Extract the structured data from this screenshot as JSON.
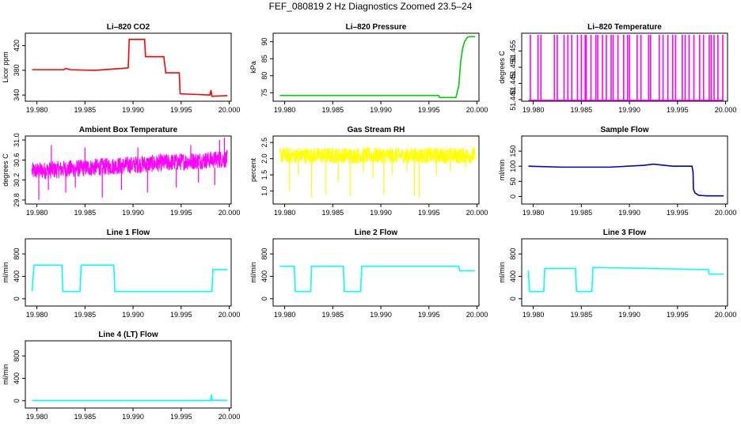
{
  "page": {
    "title": "FEF_080819  2 Hz Diagnostics Zoomed 23.5–24"
  },
  "chart_data": [
    {
      "type": "line",
      "title": "Li–820 CO2",
      "xlabel": "",
      "ylabel": "Licor ppm",
      "xlim": [
        19.9788,
        20.0002
      ],
      "ylim": [
        330,
        440
      ],
      "xticks": [
        19.98,
        19.985,
        19.99,
        19.995,
        20.0
      ],
      "xtick_labels": [
        "19.980",
        "19.985",
        "19.990",
        "19.995",
        "20.000"
      ],
      "yticks": [
        340,
        380,
        420
      ],
      "ytick_labels": [
        "340",
        "380",
        "420"
      ],
      "series": [
        {
          "color": "#ff0000",
          "x": [
            19.9795,
            19.9828,
            19.983,
            19.9835,
            19.986,
            19.9888,
            19.9895,
            19.9896,
            19.9912,
            19.9913,
            19.9932,
            19.9934,
            19.9948,
            19.9949,
            19.998,
            19.9981,
            19.9982,
            19.9998
          ],
          "y": [
            381,
            381,
            383,
            381,
            380,
            383,
            384,
            430,
            430,
            402,
            402,
            376,
            376,
            342,
            340,
            348,
            338,
            339
          ]
        }
      ]
    },
    {
      "type": "line",
      "title": "Li–820 Pressure",
      "xlabel": "",
      "ylabel": "kPa",
      "xlim": [
        19.9788,
        20.0002
      ],
      "ylim": [
        72.5,
        92.5
      ],
      "xticks": [
        19.98,
        19.985,
        19.99,
        19.995,
        20.0
      ],
      "xtick_labels": [
        "19.980",
        "19.985",
        "19.990",
        "19.995",
        "20.000"
      ],
      "yticks": [
        75,
        80,
        85,
        90
      ],
      "ytick_labels": [
        "75",
        "80",
        "85",
        "90"
      ],
      "series": [
        {
          "color": "#00cc00",
          "x": [
            19.9795,
            19.996,
            19.9961,
            19.9978,
            19.9981,
            19.9983,
            19.9985,
            19.9987,
            19.999,
            19.9992,
            19.9998
          ],
          "y": [
            74.2,
            74.2,
            73.6,
            73.6,
            77,
            84,
            88,
            90,
            91.3,
            91.5,
            91.5
          ]
        }
      ]
    },
    {
      "type": "line",
      "title": "Li–820 Temperature",
      "xlabel": "",
      "ylabel": "degrees C",
      "xlim": [
        19.9788,
        20.0002
      ],
      "ylim": [
        51.4395,
        51.4605
      ],
      "xticks": [
        19.98,
        19.985,
        19.99,
        19.995,
        20.0
      ],
      "xtick_labels": [
        "19.980",
        "19.985",
        "19.990",
        "19.995",
        "20.000"
      ],
      "yticks": [
        51.44,
        51.445,
        51.45,
        51.455
      ],
      "ytick_labels": [
        "51.440",
        "51.445",
        "51.450",
        "51.455"
      ],
      "baseline": 51.4398,
      "high": 51.46,
      "spikes_x": [
        19.9797,
        19.9805,
        19.9808,
        19.9822,
        19.9825,
        19.9832,
        19.9836,
        19.984,
        19.9846,
        19.985,
        19.9854,
        19.9855,
        19.986,
        19.9865,
        19.9867,
        19.9872,
        19.9876,
        19.9881,
        19.9883,
        19.9888,
        19.9894,
        19.9898,
        19.99,
        19.9908,
        19.9912,
        19.992,
        19.9922,
        19.9931,
        19.9935,
        19.994,
        19.9945,
        19.9948,
        19.9955,
        19.9958,
        19.9962,
        19.9967,
        19.9973,
        19.9977,
        19.9983,
        19.9985,
        19.9988,
        19.9992,
        19.9997
      ],
      "series": [
        {
          "color": "#ff00ff"
        }
      ]
    },
    {
      "type": "line",
      "title": "Ambient Box Temperature",
      "xlabel": "",
      "ylabel": "degrees C",
      "xlim": [
        19.9788,
        20.0002
      ],
      "ylim": [
        29.72,
        31.08
      ],
      "xticks": [
        19.98,
        19.985,
        19.99,
        19.995,
        20.0
      ],
      "xtick_labels": [
        "19.980",
        "19.985",
        "19.990",
        "19.995",
        "20.000"
      ],
      "yticks": [
        29.8,
        30.2,
        30.6,
        31.0
      ],
      "ytick_labels": [
        "29.8",
        "30.2",
        "30.6",
        "31.0"
      ],
      "band": {
        "x": [
          19.9795,
          19.9998
        ],
        "low_start": 30.2,
        "low_end": 30.45,
        "high_start": 30.55,
        "high_end": 30.8
      },
      "dips": [
        [
          19.9802,
          29.8
        ],
        [
          19.9812,
          30.0
        ],
        [
          19.983,
          29.95
        ],
        [
          19.984,
          30.05
        ],
        [
          19.9868,
          29.85
        ],
        [
          19.9888,
          30.0
        ],
        [
          19.9915,
          29.95
        ],
        [
          19.9945,
          30.05
        ],
        [
          19.9968,
          30.15
        ],
        [
          19.9985,
          30.1
        ]
      ],
      "peaks": [
        [
          19.9815,
          30.9
        ],
        [
          19.985,
          30.85
        ],
        [
          19.9905,
          30.85
        ],
        [
          19.996,
          30.9
        ],
        [
          19.999,
          31.0
        ],
        [
          19.9995,
          31.05
        ]
      ],
      "series": [
        {
          "color": "#ff00ff"
        }
      ]
    },
    {
      "type": "line",
      "title": "Gas Stream RH",
      "xlabel": "",
      "ylabel": "percent",
      "xlim": [
        19.9788,
        20.0002
      ],
      "ylim": [
        0.6,
        2.7
      ],
      "xticks": [
        19.98,
        19.985,
        19.99,
        19.995,
        20.0
      ],
      "xtick_labels": [
        "19.980",
        "19.985",
        "19.990",
        "19.995",
        "20.000"
      ],
      "yticks": [
        1.0,
        1.5,
        2.0,
        2.5
      ],
      "ytick_labels": [
        "1.0",
        "1.5",
        "2.0",
        "2.5"
      ],
      "band": {
        "x": [
          19.9795,
          19.9998
        ],
        "low": 1.85,
        "high": 2.35
      },
      "dips": [
        [
          19.9805,
          1.0
        ],
        [
          19.9814,
          1.5
        ],
        [
          19.9828,
          0.8
        ],
        [
          19.9843,
          0.9
        ],
        [
          19.9856,
          1.3
        ],
        [
          19.9868,
          0.85
        ],
        [
          19.9882,
          1.6
        ],
        [
          19.9892,
          1.4
        ],
        [
          19.9903,
          0.9
        ],
        [
          19.9912,
          1.5
        ],
        [
          19.9927,
          1.6
        ],
        [
          19.9935,
          0.85
        ],
        [
          19.994,
          0.8
        ],
        [
          19.9958,
          1.5
        ],
        [
          19.9972,
          1.6
        ],
        [
          19.9988,
          1.7
        ]
      ],
      "series": [
        {
          "color": "#ffff00"
        }
      ]
    },
    {
      "type": "line",
      "title": "Sample Flow",
      "xlabel": "",
      "ylabel": "ml/min",
      "xlim": [
        19.9788,
        20.0002
      ],
      "ylim": [
        -25,
        200
      ],
      "xticks": [
        19.98,
        19.985,
        19.99,
        19.995,
        20.0
      ],
      "xtick_labels": [
        "19.980",
        "19.985",
        "19.990",
        "19.995",
        "20.000"
      ],
      "yticks": [
        0,
        50,
        100,
        150
      ],
      "ytick_labels": [
        "0",
        "50",
        "100",
        "150"
      ],
      "series": [
        {
          "color": "#0000cc",
          "x": [
            19.9795,
            19.983,
            19.988,
            19.9915,
            19.9925,
            19.9945,
            19.9965,
            19.99662,
            19.99665,
            19.9968,
            19.9972,
            19.998,
            19.9998
          ],
          "y": [
            100,
            97,
            97,
            103,
            107,
            100,
            100,
            80,
            25,
            12,
            4,
            2,
            2
          ]
        }
      ]
    },
    {
      "type": "line",
      "title": "Line 1 Flow",
      "xlabel": "",
      "ylabel": "ml/min",
      "xlim": [
        19.9788,
        20.0002
      ],
      "ylim": [
        -130,
        1070
      ],
      "xticks": [
        19.98,
        19.985,
        19.99,
        19.995,
        20.0
      ],
      "xtick_labels": [
        "19.980",
        "19.985",
        "19.990",
        "19.995",
        "20.000"
      ],
      "yticks": [
        0,
        400,
        800
      ],
      "ytick_labels": [
        "0",
        "400",
        "800"
      ],
      "series": [
        {
          "color": "#00ffff",
          "x": [
            19.9795,
            19.9797,
            19.9826,
            19.9827,
            19.9845,
            19.9846,
            19.988,
            19.9881,
            19.9982,
            19.9983,
            19.9998
          ],
          "y": [
            130,
            600,
            600,
            130,
            130,
            600,
            600,
            130,
            130,
            520,
            520
          ]
        }
      ]
    },
    {
      "type": "line",
      "title": "Line 2 Flow",
      "xlabel": "",
      "ylabel": "ml/min",
      "xlim": [
        19.9788,
        20.0002
      ],
      "ylim": [
        -130,
        1070
      ],
      "xticks": [
        19.98,
        19.985,
        19.99,
        19.995,
        20.0
      ],
      "xtick_labels": [
        "19.980",
        "19.985",
        "19.990",
        "19.995",
        "20.000"
      ],
      "yticks": [
        0,
        400,
        800
      ],
      "ytick_labels": [
        "0",
        "400",
        "800"
      ],
      "series": [
        {
          "color": "#00ffff",
          "x": [
            19.9795,
            19.981,
            19.9811,
            19.9827,
            19.9828,
            19.9861,
            19.9862,
            19.9879,
            19.988,
            19.9981,
            19.9982,
            19.9998
          ],
          "y": [
            580,
            580,
            130,
            130,
            580,
            580,
            130,
            130,
            580,
            580,
            500,
            500
          ]
        }
      ]
    },
    {
      "type": "line",
      "title": "Line 3 Flow",
      "xlabel": "",
      "ylabel": "ml/min",
      "xlim": [
        19.9788,
        20.0002
      ],
      "ylim": [
        -130,
        1070
      ],
      "xticks": [
        19.98,
        19.985,
        19.99,
        19.995,
        20.0
      ],
      "xtick_labels": [
        "19.980",
        "19.985",
        "19.990",
        "19.995",
        "20.000"
      ],
      "yticks": [
        0,
        400,
        800
      ],
      "ytick_labels": [
        "0",
        "400",
        "800"
      ],
      "series": [
        {
          "color": "#00ffff",
          "x": [
            19.9795,
            19.9796,
            19.9797,
            19.9811,
            19.9812,
            19.9844,
            19.9845,
            19.9861,
            19.9862,
            19.9982,
            19.9983,
            19.9998
          ],
          "y": [
            500,
            130,
            130,
            130,
            540,
            540,
            130,
            130,
            560,
            520,
            440,
            440
          ]
        }
      ]
    },
    {
      "type": "line",
      "title": "Line 4 (LT) Flow",
      "xlabel": "",
      "ylabel": "ml/min",
      "xlim": [
        19.9788,
        20.0002
      ],
      "ylim": [
        -130,
        1070
      ],
      "xticks": [
        19.98,
        19.985,
        19.99,
        19.995,
        20.0
      ],
      "xtick_labels": [
        "19.980",
        "19.985",
        "19.990",
        "19.995",
        "20.000"
      ],
      "yticks": [
        0,
        400,
        800
      ],
      "ytick_labels": [
        "0",
        "400",
        "800"
      ],
      "series": [
        {
          "color": "#00ffff",
          "x": [
            19.9795,
            19.9981,
            19.99815,
            19.9982,
            19.99825,
            19.9998
          ],
          "y": [
            5,
            5,
            110,
            40,
            10,
            5
          ]
        }
      ]
    }
  ]
}
